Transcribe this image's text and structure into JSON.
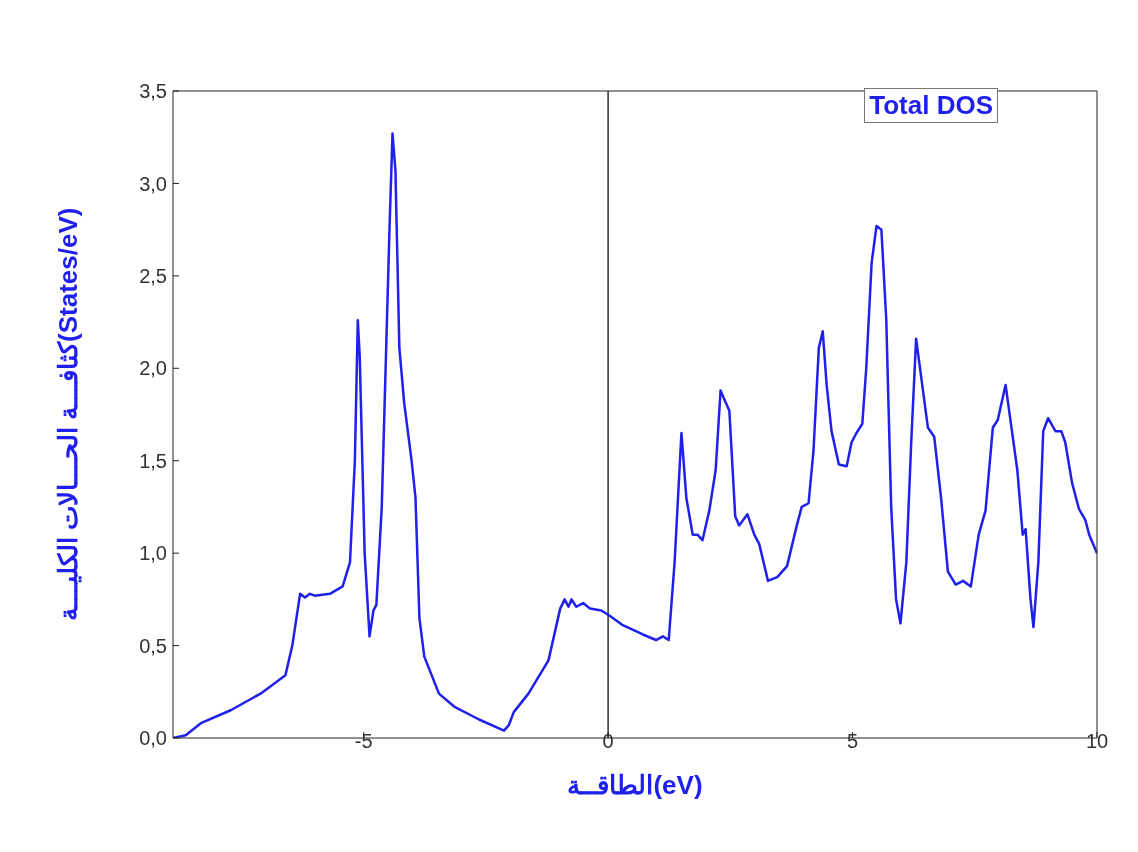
{
  "chart_data": {
    "type": "line",
    "xlabel": "الطاقــة(eV)",
    "ylabel": "كثافـــة الحـــالات الكليـــة(States/eV)",
    "xlim": [
      -8.9,
      10
    ],
    "xticks": [
      -5,
      0,
      5,
      10
    ],
    "ylim": [
      0,
      3.5
    ],
    "yticks": [
      {
        "value": 0,
        "label": "0,0"
      },
      {
        "value": 0.5,
        "label": "0,5"
      },
      {
        "value": 1,
        "label": "1,0"
      },
      {
        "value": 1.5,
        "label": "1,5"
      },
      {
        "value": 2,
        "label": "2,0"
      },
      {
        "value": 2.5,
        "label": "2,5"
      },
      {
        "value": 3,
        "label": "3,0"
      },
      {
        "value": 3.5,
        "label": "3,5"
      }
    ],
    "grid": false,
    "legend": "top right",
    "marker": "none",
    "line_style": "solid",
    "ref_lines": [
      {
        "axis": "x",
        "value": 0,
        "color": "#333333"
      }
    ],
    "series": [
      {
        "name": "Total DOS",
        "color": "#1f1fee",
        "x": [
          -8.9,
          -8.64,
          -8.33,
          -7.72,
          -7.11,
          -6.6,
          -6.46,
          -6.3,
          -6.2,
          -6.1,
          -6.0,
          -5.69,
          -5.43,
          -5.28,
          -5.18,
          -5.12,
          -5.08,
          -4.98,
          -4.88,
          -4.8,
          -4.74,
          -4.63,
          -4.47,
          -4.41,
          -4.35,
          -4.27,
          -4.17,
          -4.02,
          -3.94,
          -3.86,
          -3.76,
          -3.46,
          -3.15,
          -2.64,
          -2.13,
          -2.03,
          -1.93,
          -1.63,
          -1.22,
          -0.98,
          -0.89,
          -0.81,
          -0.75,
          -0.65,
          -0.51,
          -0.37,
          -0.14,
          0.04,
          0.3,
          0.71,
          0.98,
          1.12,
          1.24,
          1.36,
          1.5,
          1.6,
          1.73,
          1.83,
          1.93,
          2.07,
          2.2,
          2.3,
          2.38,
          2.48,
          2.6,
          2.68,
          2.85,
          2.99,
          3.09,
          3.27,
          3.46,
          3.66,
          3.86,
          3.96,
          4.1,
          4.2,
          4.31,
          4.39,
          4.47,
          4.57,
          4.72,
          4.88,
          4.98,
          5.08,
          5.2,
          5.28,
          5.39,
          5.49,
          5.59,
          5.69,
          5.79,
          5.89,
          5.98,
          6.1,
          6.2,
          6.3,
          6.4,
          6.54,
          6.67,
          6.81,
          6.95,
          7.11,
          7.26,
          7.42,
          7.58,
          7.72,
          7.87,
          7.97,
          8.13,
          8.25,
          8.37,
          8.48,
          8.54,
          8.64,
          8.7,
          8.8,
          8.9,
          9.0,
          9.15,
          9.27,
          9.35,
          9.49,
          9.63,
          9.76,
          9.84,
          10.0
        ],
        "values": [
          0.0,
          0.015,
          0.08,
          0.15,
          0.24,
          0.34,
          0.5,
          0.78,
          0.76,
          0.78,
          0.77,
          0.78,
          0.82,
          0.95,
          1.5,
          2.26,
          2.06,
          1.0,
          0.55,
          0.69,
          0.72,
          1.25,
          2.77,
          3.27,
          3.07,
          2.11,
          1.81,
          1.5,
          1.3,
          0.65,
          0.44,
          0.24,
          0.17,
          0.1,
          0.04,
          0.07,
          0.14,
          0.24,
          0.42,
          0.7,
          0.75,
          0.71,
          0.75,
          0.71,
          0.73,
          0.7,
          0.69,
          0.66,
          0.61,
          0.56,
          0.53,
          0.55,
          0.53,
          0.95,
          1.65,
          1.3,
          1.1,
          1.1,
          1.07,
          1.23,
          1.45,
          1.88,
          1.83,
          1.77,
          1.2,
          1.15,
          1.21,
          1.1,
          1.05,
          0.85,
          0.87,
          0.93,
          1.15,
          1.25,
          1.27,
          1.55,
          2.11,
          2.2,
          1.91,
          1.66,
          1.48,
          1.47,
          1.6,
          1.65,
          1.7,
          2.0,
          2.57,
          2.77,
          2.75,
          2.26,
          1.25,
          0.75,
          0.62,
          0.95,
          1.6,
          2.16,
          1.96,
          1.68,
          1.63,
          1.3,
          0.9,
          0.83,
          0.85,
          0.82,
          1.1,
          1.23,
          1.68,
          1.72,
          1.91,
          1.68,
          1.45,
          1.1,
          1.13,
          0.75,
          0.6,
          0.95,
          1.66,
          1.73,
          1.66,
          1.66,
          1.6,
          1.38,
          1.24,
          1.18,
          1.1,
          1.0
        ]
      }
    ]
  }
}
